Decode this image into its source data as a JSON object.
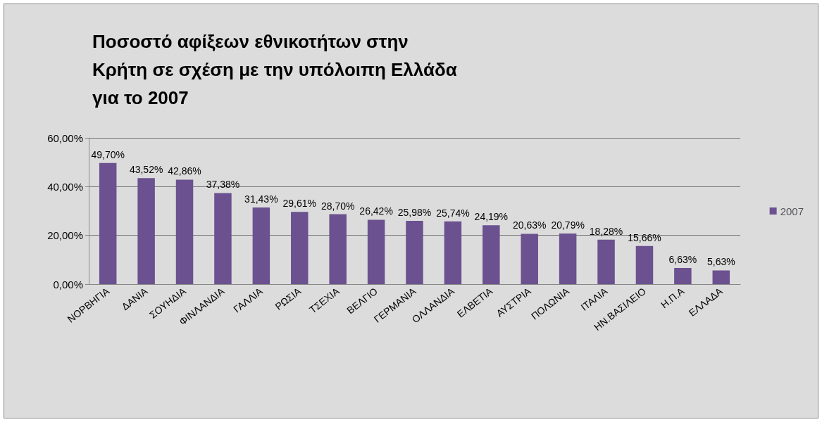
{
  "chart_data": {
    "type": "bar",
    "title": "Ποσοστό αφίξεων εθνικοτήτων στην Κρήτη σε σχέση με την υπόλοιπη Ελλάδα για το 2007",
    "categories": [
      "ΝΟΡΒΗΓΙΑ",
      "ΔΑΝΙΑ",
      "ΣΟΥΗΔΙΑ",
      "ΦΙΝΛΑΝΔΙΑ",
      "ΓΑΛΛΙΑ",
      "ΡΩΣΙΑ",
      "ΤΣΕΧΙΑ",
      "ΒΕΛΓΙΟ",
      "ΓΕΡΜΑΝΙΑ",
      "ΟΛΛΑΝΔΙΑ",
      "ΕΛΒΕΤΙΑ",
      "ΑΥΣΤΡΙΑ",
      "ΠΟΛΩΝΙΑ",
      "ΙΤΑΛΙΑ",
      "ΗΝ.ΒΑΣΙΛΕΙΟ",
      "Η.Π.Α",
      "ΕΛΛΑΔΑ"
    ],
    "series": [
      {
        "name": "2007",
        "color": "#6b5190",
        "values": [
          49.7,
          43.52,
          42.86,
          37.38,
          31.43,
          29.61,
          28.7,
          26.42,
          25.98,
          25.74,
          24.19,
          20.63,
          20.79,
          18.28,
          15.66,
          6.63,
          5.63
        ],
        "value_labels": [
          "49,70%",
          "43,52%",
          "42,86%",
          "37,38%",
          "31,43%",
          "29,61%",
          "28,70%",
          "26,42%",
          "25,98%",
          "25,74%",
          "24,19%",
          "20,63%",
          "20,79%",
          "18,28%",
          "15,66%",
          "6,63%",
          "5,63%"
        ]
      }
    ],
    "ylim": [
      0,
      60
    ],
    "yticks": [
      {
        "value": 0,
        "label": "0,00%"
      },
      {
        "value": 20,
        "label": "20,00%"
      },
      {
        "value": 40,
        "label": "40,00%"
      },
      {
        "value": 60,
        "label": "60,00%"
      }
    ],
    "grid": "y",
    "legend": "right"
  }
}
